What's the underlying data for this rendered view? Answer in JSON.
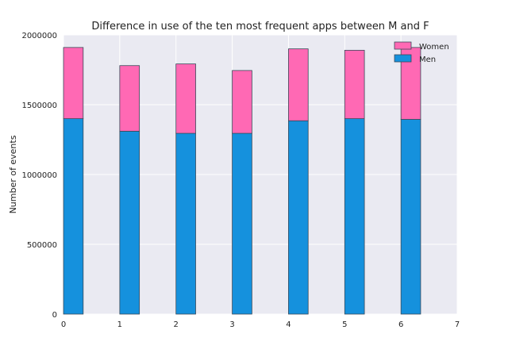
{
  "chart_data": {
    "type": "bar",
    "stacked": true,
    "title": "Difference in use of the ten most frequent apps between M and F",
    "xlabel": "",
    "ylabel": "Number of events",
    "x": [
      0,
      1,
      2,
      3,
      4,
      5,
      6
    ],
    "xlim": [
      0,
      7
    ],
    "ylim": [
      0,
      2000000
    ],
    "xticks": [
      "0",
      "1",
      "2",
      "3",
      "4",
      "5",
      "6",
      "7"
    ],
    "yticks": [
      "0",
      "500000",
      "1000000",
      "1500000",
      "2000000"
    ],
    "series": [
      {
        "name": "Men",
        "color": "#1591dd",
        "values": [
          1400000,
          1310000,
          1295000,
          1295000,
          1385000,
          1400000,
          1395000
        ]
      },
      {
        "name": "Women",
        "color": "#ff69b4",
        "values": [
          510000,
          470000,
          497000,
          450000,
          515000,
          490000,
          515000
        ]
      }
    ],
    "grid": true,
    "background": "#eaeaf2",
    "legend_position": "top-right"
  }
}
